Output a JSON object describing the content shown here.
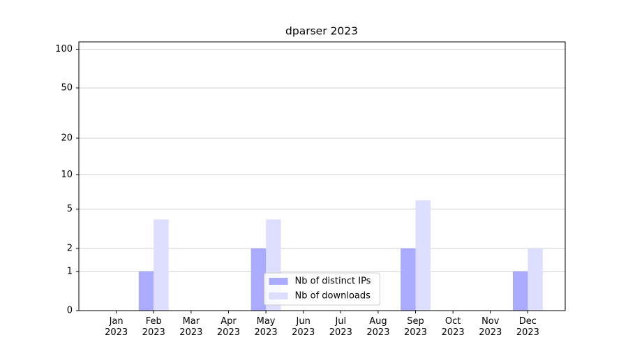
{
  "chart_data": {
    "type": "bar",
    "title": "dparser 2023",
    "categories": [
      "Jan\n2023",
      "Feb\n2023",
      "Mar\n2023",
      "Apr\n2023",
      "May\n2023",
      "Jun\n2023",
      "Jul\n2023",
      "Aug\n2023",
      "Sep\n2023",
      "Oct\n2023",
      "Nov\n2023",
      "Dec\n2023"
    ],
    "series": [
      {
        "name": "Nb of distinct IPs",
        "color": "#aaaaff",
        "values": [
          0,
          1,
          0,
          0,
          2,
          0,
          0,
          0,
          2,
          0,
          0,
          1
        ]
      },
      {
        "name": "Nb of downloads",
        "color": "#ddddff",
        "values": [
          0,
          4,
          0,
          0,
          4,
          0,
          0,
          0,
          6,
          0,
          0,
          2
        ]
      }
    ],
    "yscale": "log1p",
    "ylim": [
      0,
      114
    ],
    "yticks": [
      0,
      1,
      2,
      5,
      10,
      20,
      50,
      100
    ],
    "grid": true,
    "legend": "lower center"
  }
}
